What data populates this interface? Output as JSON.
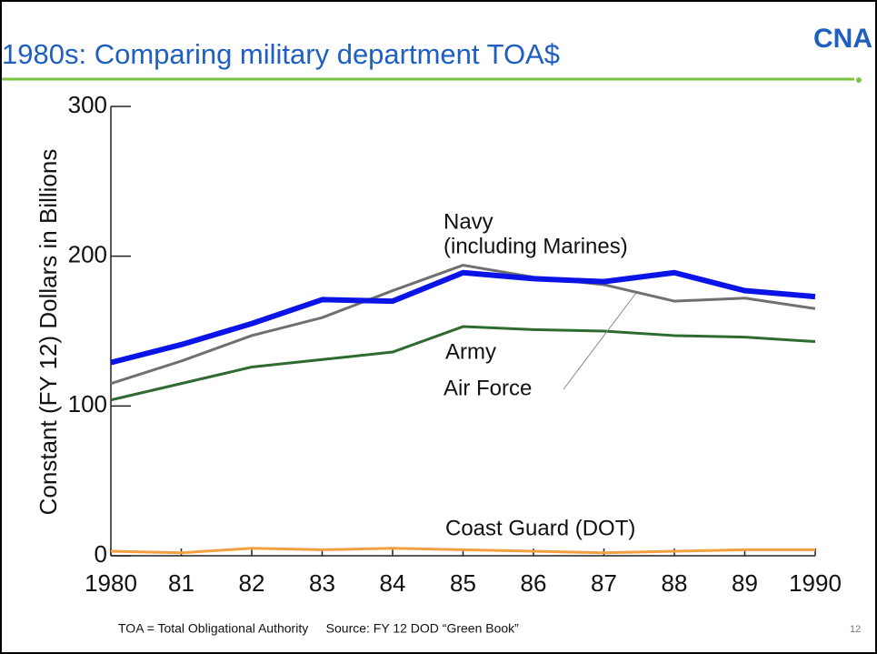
{
  "logo": "CNA",
  "footnote": "TOA = Total Obligational Authority     Source: FY 12 DOD “Green Book”",
  "page_number": "12",
  "chart_data": {
    "type": "line",
    "title": "1980s: Comparing military department TOA$",
    "y_label": "Constant (FY 12) Dollars in Billions",
    "categories": [
      "1980",
      "81",
      "82",
      "83",
      "84",
      "85",
      "86",
      "87",
      "88",
      "89",
      "1990"
    ],
    "series": [
      {
        "name": "Navy",
        "color": "#0a14e6",
        "values": [
          129,
          141,
          155,
          171,
          170,
          189,
          185,
          183,
          189,
          177,
          173
        ]
      },
      {
        "name": "Air Force",
        "color": "#707070",
        "values": [
          115,
          130,
          147,
          159,
          177,
          194,
          186,
          181,
          170,
          172,
          165
        ]
      },
      {
        "name": "Army",
        "color": "#2e6b2e",
        "values": [
          104,
          115,
          126,
          131,
          136,
          153,
          151,
          150,
          147,
          146,
          143
        ]
      },
      {
        "name": "Coast Guard (DOT)",
        "color": "#f5a040",
        "values": [
          3,
          2,
          5,
          4,
          5,
          4,
          3,
          2,
          3,
          4,
          4
        ]
      }
    ],
    "annotations": [
      "(including Marines)"
    ],
    "ylim": [
      0,
      300
    ],
    "yticks": [
      0,
      100,
      200,
      300
    ]
  }
}
